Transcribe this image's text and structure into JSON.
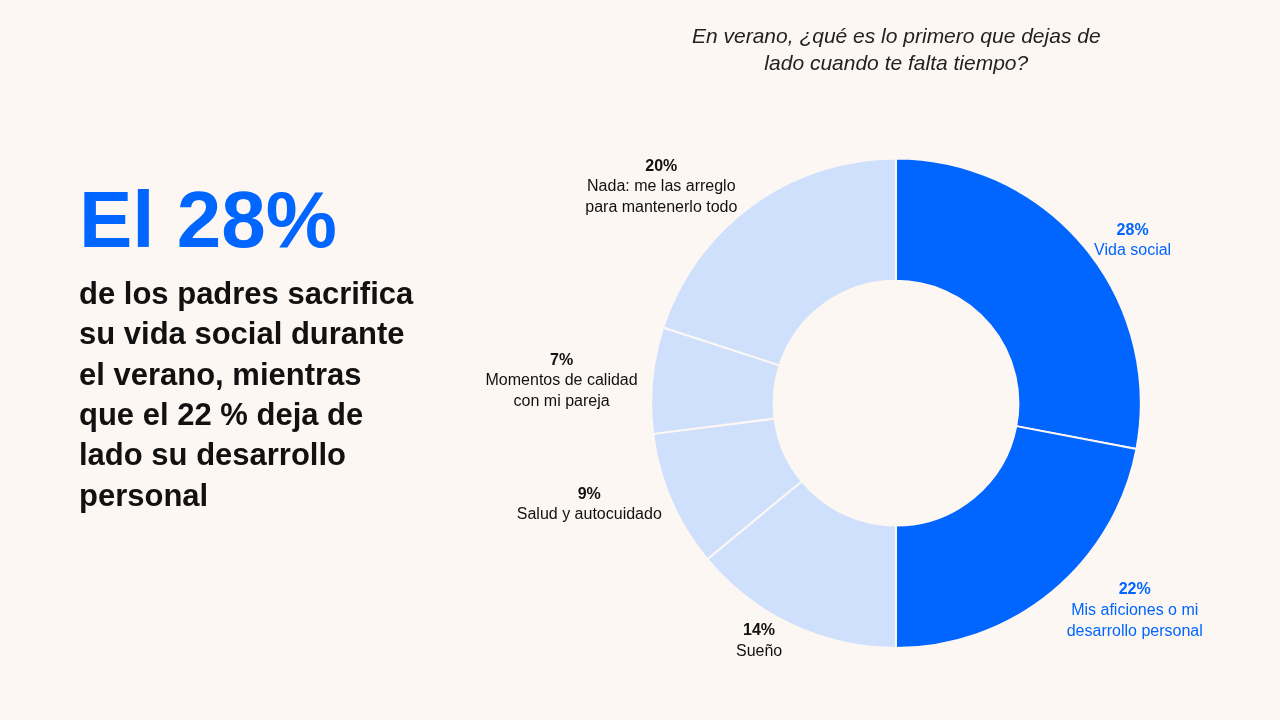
{
  "chart_data": {
    "type": "donut",
    "title": "En verano, ¿qué es lo primero que dejas de lado cuando te falta tiempo?",
    "categories": [
      "Vida social",
      "Mis aficiones o mi desarrollo personal",
      "Sueño",
      "Salud y autocuidado",
      "Momentos de calidad con mi pareja",
      "Nada: me las arreglo para mantenerlo todo"
    ],
    "values": [
      28,
      22,
      14,
      9,
      7,
      20
    ],
    "value_labels": [
      "28%",
      "22%",
      "14%",
      "9%",
      "7%",
      "20%"
    ],
    "colors": [
      "#0066ff",
      "#0066ff",
      "#cfe0fc",
      "#cfe0fc",
      "#cfe0fc",
      "#cfe0fc"
    ],
    "annotations": [
      "El 28%",
      "de los padres sacrifica",
      "su vida social durante",
      "el verano, mientras",
      "que el 22 % deja de",
      "lado su desarrollo",
      "personal"
    ],
    "legend": false
  }
}
